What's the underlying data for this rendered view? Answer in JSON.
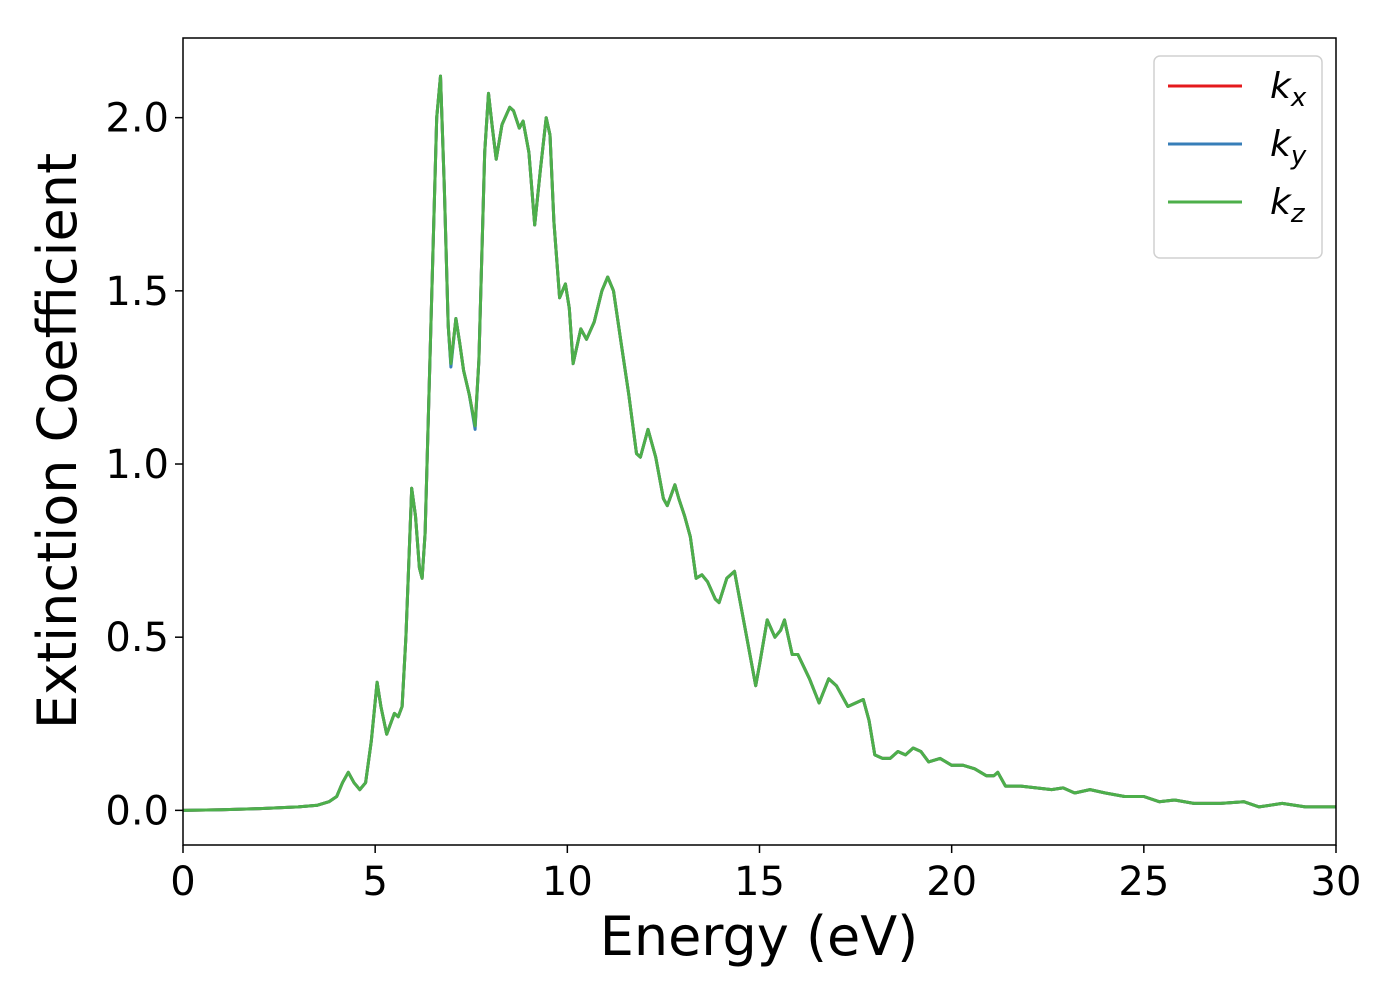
{
  "chart_data": {
    "type": "line",
    "xlabel": "Energy (eV)",
    "ylabel": "Extinction Coefficient",
    "x": [
      0,
      1,
      2,
      3,
      3.5,
      3.8,
      4.0,
      4.15,
      4.3,
      4.45,
      4.6,
      4.75,
      4.9,
      5.05,
      5.15,
      5.3,
      5.5,
      5.6,
      5.7,
      5.8,
      5.95,
      6.05,
      6.15,
      6.22,
      6.3,
      6.45,
      6.6,
      6.7,
      6.8,
      6.9,
      6.97,
      7.1,
      7.2,
      7.3,
      7.45,
      7.6,
      7.7,
      7.85,
      7.95,
      8.05,
      8.15,
      8.3,
      8.5,
      8.6,
      8.75,
      8.85,
      9.0,
      9.15,
      9.3,
      9.45,
      9.55,
      9.65,
      9.8,
      9.95,
      10.05,
      10.15,
      10.35,
      10.5,
      10.7,
      10.9,
      11.05,
      11.2,
      11.4,
      11.6,
      11.8,
      11.9,
      12.1,
      12.3,
      12.5,
      12.6,
      12.8,
      12.9,
      13.05,
      13.2,
      13.35,
      13.5,
      13.65,
      13.85,
      13.95,
      14.15,
      14.35,
      14.5,
      14.7,
      14.9,
      15.0,
      15.2,
      15.4,
      15.55,
      15.65,
      15.85,
      16.0,
      16.3,
      16.55,
      16.8,
      17.0,
      17.3,
      17.5,
      17.7,
      17.85,
      18.0,
      18.2,
      18.4,
      18.6,
      18.8,
      19.0,
      19.2,
      19.4,
      19.7,
      20.0,
      20.3,
      20.6,
      20.9,
      21.1,
      21.2,
      21.4,
      21.8,
      22.2,
      22.6,
      22.9,
      23.2,
      23.6,
      24.0,
      24.5,
      25.0,
      25.4,
      25.8,
      26.3,
      27.0,
      27.6,
      28.0,
      28.6,
      29.2,
      30
    ],
    "series": [
      {
        "name": "kx",
        "color": "#e41a1c",
        "values": [
          0,
          0.002,
          0.005,
          0.01,
          0.015,
          0.025,
          0.04,
          0.08,
          0.11,
          0.08,
          0.06,
          0.08,
          0.2,
          0.37,
          0.3,
          0.22,
          0.28,
          0.27,
          0.3,
          0.5,
          0.93,
          0.85,
          0.7,
          0.67,
          0.8,
          1.4,
          2.0,
          2.12,
          1.8,
          1.4,
          1.29,
          1.42,
          1.35,
          1.27,
          1.2,
          1.11,
          1.3,
          1.9,
          2.07,
          1.97,
          1.88,
          1.98,
          2.03,
          2.02,
          1.97,
          1.99,
          1.9,
          1.69,
          1.85,
          2.0,
          1.95,
          1.7,
          1.48,
          1.52,
          1.45,
          1.29,
          1.39,
          1.36,
          1.41,
          1.5,
          1.54,
          1.5,
          1.35,
          1.2,
          1.03,
          1.02,
          1.1,
          1.02,
          0.9,
          0.88,
          0.94,
          0.9,
          0.85,
          0.79,
          0.67,
          0.68,
          0.66,
          0.61,
          0.6,
          0.67,
          0.69,
          0.6,
          0.48,
          0.36,
          0.42,
          0.55,
          0.5,
          0.52,
          0.55,
          0.45,
          0.45,
          0.38,
          0.31,
          0.38,
          0.36,
          0.3,
          0.31,
          0.32,
          0.26,
          0.16,
          0.15,
          0.15,
          0.17,
          0.16,
          0.18,
          0.17,
          0.14,
          0.15,
          0.13,
          0.13,
          0.12,
          0.1,
          0.1,
          0.11,
          0.07,
          0.07,
          0.065,
          0.06,
          0.065,
          0.05,
          0.06,
          0.05,
          0.04,
          0.04,
          0.025,
          0.03,
          0.02,
          0.02,
          0.025,
          0.01,
          0.02,
          0.01,
          0.01
        ]
      },
      {
        "name": "ky",
        "color": "#377eb8",
        "values": [
          0,
          0.002,
          0.005,
          0.01,
          0.015,
          0.025,
          0.04,
          0.08,
          0.11,
          0.08,
          0.06,
          0.08,
          0.2,
          0.37,
          0.3,
          0.22,
          0.28,
          0.27,
          0.3,
          0.5,
          0.93,
          0.85,
          0.7,
          0.67,
          0.8,
          1.4,
          2.0,
          2.12,
          1.8,
          1.4,
          1.28,
          1.42,
          1.35,
          1.27,
          1.2,
          1.1,
          1.3,
          1.9,
          2.07,
          1.97,
          1.88,
          1.98,
          2.03,
          2.02,
          1.97,
          1.99,
          1.9,
          1.69,
          1.85,
          2.0,
          1.95,
          1.7,
          1.48,
          1.52,
          1.45,
          1.29,
          1.39,
          1.36,
          1.41,
          1.5,
          1.54,
          1.5,
          1.35,
          1.2,
          1.03,
          1.02,
          1.1,
          1.02,
          0.9,
          0.88,
          0.94,
          0.9,
          0.85,
          0.79,
          0.67,
          0.68,
          0.66,
          0.61,
          0.6,
          0.67,
          0.69,
          0.6,
          0.48,
          0.36,
          0.42,
          0.55,
          0.5,
          0.52,
          0.55,
          0.45,
          0.45,
          0.38,
          0.31,
          0.38,
          0.36,
          0.3,
          0.31,
          0.32,
          0.26,
          0.16,
          0.15,
          0.15,
          0.17,
          0.16,
          0.18,
          0.17,
          0.14,
          0.15,
          0.13,
          0.13,
          0.12,
          0.1,
          0.1,
          0.11,
          0.07,
          0.07,
          0.065,
          0.06,
          0.065,
          0.05,
          0.06,
          0.05,
          0.04,
          0.04,
          0.025,
          0.03,
          0.02,
          0.02,
          0.025,
          0.01,
          0.02,
          0.01,
          0.01
        ]
      },
      {
        "name": "kz",
        "color": "#4daf4a",
        "values": [
          0,
          0.002,
          0.005,
          0.01,
          0.015,
          0.025,
          0.04,
          0.08,
          0.11,
          0.08,
          0.06,
          0.08,
          0.2,
          0.37,
          0.3,
          0.22,
          0.28,
          0.27,
          0.3,
          0.5,
          0.93,
          0.85,
          0.7,
          0.67,
          0.8,
          1.4,
          2.0,
          2.12,
          1.8,
          1.4,
          1.29,
          1.42,
          1.35,
          1.27,
          1.2,
          1.11,
          1.3,
          1.9,
          2.07,
          1.97,
          1.88,
          1.98,
          2.03,
          2.02,
          1.97,
          1.99,
          1.9,
          1.69,
          1.85,
          2.0,
          1.95,
          1.7,
          1.48,
          1.52,
          1.45,
          1.29,
          1.39,
          1.36,
          1.41,
          1.5,
          1.54,
          1.5,
          1.35,
          1.2,
          1.03,
          1.02,
          1.1,
          1.02,
          0.9,
          0.88,
          0.94,
          0.9,
          0.85,
          0.79,
          0.67,
          0.68,
          0.66,
          0.61,
          0.6,
          0.67,
          0.69,
          0.6,
          0.48,
          0.36,
          0.42,
          0.55,
          0.5,
          0.52,
          0.55,
          0.45,
          0.45,
          0.38,
          0.31,
          0.38,
          0.36,
          0.3,
          0.31,
          0.32,
          0.26,
          0.16,
          0.15,
          0.15,
          0.17,
          0.16,
          0.18,
          0.17,
          0.14,
          0.15,
          0.13,
          0.13,
          0.12,
          0.1,
          0.1,
          0.11,
          0.07,
          0.07,
          0.065,
          0.06,
          0.065,
          0.05,
          0.06,
          0.05,
          0.04,
          0.04,
          0.025,
          0.03,
          0.02,
          0.02,
          0.025,
          0.01,
          0.02,
          0.01,
          0.01
        ]
      }
    ],
    "xlim": [
      0,
      30
    ],
    "xticks": [
      0,
      5,
      10,
      15,
      20,
      25,
      30
    ],
    "ylim": [
      -0.1,
      2.23
    ],
    "yticks": [
      {
        "value": 0,
        "label": "0.0"
      },
      0.5,
      {
        "value": 1,
        "label": "1.0"
      },
      1.5,
      {
        "value": 2,
        "label": "2.0"
      }
    ],
    "grid": false,
    "legend": "upper right"
  }
}
